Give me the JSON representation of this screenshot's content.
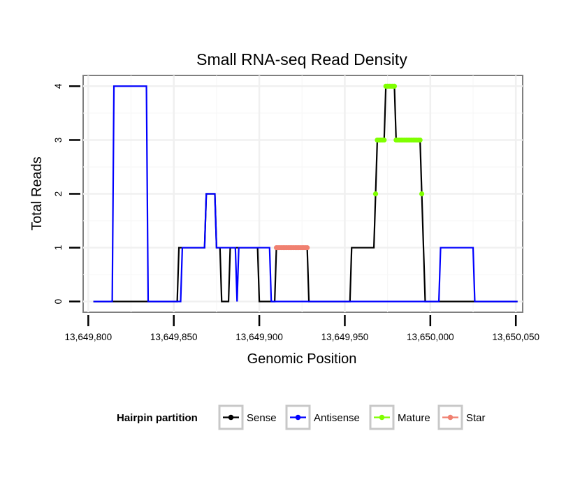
{
  "chart_data": {
    "type": "line",
    "title": "Small RNA-seq Read Density",
    "xlabel": "Genomic Position",
    "ylabel": "Total Reads",
    "xlim": [
      13649797,
      13650054
    ],
    "ylim": [
      -0.2,
      4.2
    ],
    "x_ticks": [
      13649800,
      13649850,
      13649900,
      13649950,
      13650000,
      13650050
    ],
    "x_tick_labels": [
      "13,649,800",
      "13,649,850",
      "13,649,900",
      "13,649,950",
      "13,650,000",
      "13,650,050"
    ],
    "y_ticks": [
      0,
      1,
      2,
      3,
      4
    ],
    "y_tick_labels": [
      "0",
      "1",
      "2",
      "3",
      "4"
    ],
    "grid": true,
    "legend": {
      "title": "Hairpin partition",
      "position": "bottom",
      "entries": [
        "Sense",
        "Antisense",
        "Mature",
        "Star"
      ]
    },
    "series": [
      {
        "name": "Sense",
        "color": "#000000",
        "style": "line",
        "points": [
          [
            13649803,
            0
          ],
          [
            13649852,
            0
          ],
          [
            13649853,
            1
          ],
          [
            13649868,
            1
          ],
          [
            13649869,
            2
          ],
          [
            13649874,
            2
          ],
          [
            13649875,
            1
          ],
          [
            13649877,
            1
          ],
          [
            13649878,
            0
          ],
          [
            13649882,
            0
          ],
          [
            13649883,
            1
          ],
          [
            13649899,
            1
          ],
          [
            13649900,
            0
          ],
          [
            13649909,
            0
          ],
          [
            13649910,
            1
          ],
          [
            13649928,
            1
          ],
          [
            13649929,
            0
          ],
          [
            13649953,
            0
          ],
          [
            13649954,
            1
          ],
          [
            13649967,
            1
          ],
          [
            13649968,
            2
          ],
          [
            13649969,
            3
          ],
          [
            13649973,
            3
          ],
          [
            13649974,
            4
          ],
          [
            13649979,
            4
          ],
          [
            13649980,
            3
          ],
          [
            13649994,
            3
          ],
          [
            13649995,
            2
          ],
          [
            13649996,
            1
          ],
          [
            13649997,
            0
          ],
          [
            13650051,
            0
          ]
        ]
      },
      {
        "name": "Antisense",
        "color": "#0000ff",
        "style": "line",
        "points": [
          [
            13649803,
            0
          ],
          [
            13649814,
            0
          ],
          [
            13649815,
            4
          ],
          [
            13649834,
            4
          ],
          [
            13649835,
            0
          ],
          [
            13649854,
            0
          ],
          [
            13649855,
            1
          ],
          [
            13649868,
            1
          ],
          [
            13649869,
            2
          ],
          [
            13649874,
            2
          ],
          [
            13649875,
            1
          ],
          [
            13649886,
            1
          ],
          [
            13649887,
            0
          ],
          [
            13649888,
            1
          ],
          [
            13649906,
            1
          ],
          [
            13649907,
            0
          ],
          [
            13650005,
            0
          ],
          [
            13650006,
            1
          ],
          [
            13650025,
            1
          ],
          [
            13650026,
            0
          ],
          [
            13650051,
            0
          ]
        ]
      },
      {
        "name": "Mature",
        "color": "#7fff00",
        "style": "points",
        "points": [
          [
            13649968,
            2
          ],
          [
            13649969,
            3
          ],
          [
            13649970,
            3
          ],
          [
            13649971,
            3
          ],
          [
            13649972,
            3
          ],
          [
            13649973,
            3
          ],
          [
            13649974,
            4
          ],
          [
            13649975,
            4
          ],
          [
            13649976,
            4
          ],
          [
            13649977,
            4
          ],
          [
            13649978,
            4
          ],
          [
            13649979,
            4
          ],
          [
            13649980,
            3
          ],
          [
            13649981,
            3
          ],
          [
            13649982,
            3
          ],
          [
            13649983,
            3
          ],
          [
            13649984,
            3
          ],
          [
            13649985,
            3
          ],
          [
            13649986,
            3
          ],
          [
            13649987,
            3
          ],
          [
            13649988,
            3
          ],
          [
            13649989,
            3
          ],
          [
            13649990,
            3
          ],
          [
            13649991,
            3
          ],
          [
            13649992,
            3
          ],
          [
            13649993,
            3
          ],
          [
            13649994,
            3
          ],
          [
            13649995,
            2
          ]
        ]
      },
      {
        "name": "Star",
        "color": "#f08070",
        "style": "points",
        "points": [
          [
            13649910,
            1
          ],
          [
            13649911,
            1
          ],
          [
            13649912,
            1
          ],
          [
            13649913,
            1
          ],
          [
            13649914,
            1
          ],
          [
            13649915,
            1
          ],
          [
            13649916,
            1
          ],
          [
            13649917,
            1
          ],
          [
            13649918,
            1
          ],
          [
            13649919,
            1
          ],
          [
            13649920,
            1
          ],
          [
            13649921,
            1
          ],
          [
            13649922,
            1
          ],
          [
            13649923,
            1
          ],
          [
            13649924,
            1
          ],
          [
            13649925,
            1
          ],
          [
            13649926,
            1
          ],
          [
            13649927,
            1
          ],
          [
            13649928,
            1
          ]
        ]
      }
    ]
  }
}
